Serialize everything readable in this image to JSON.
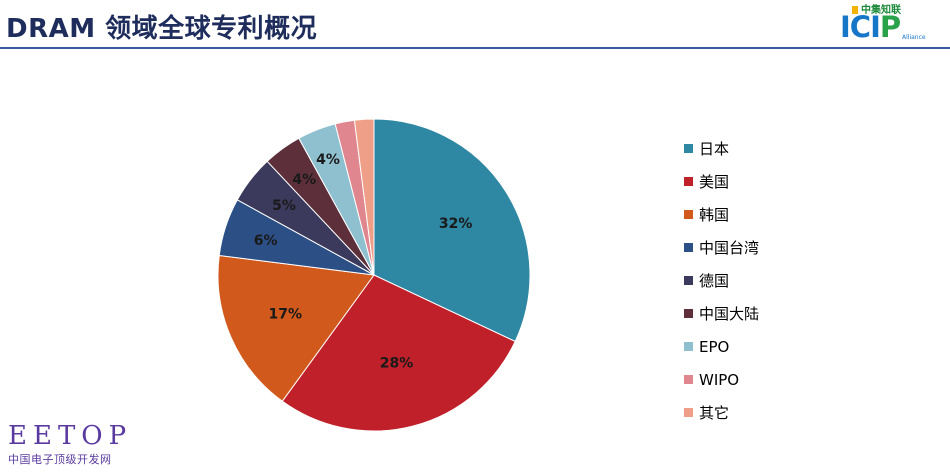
{
  "title": "DRAM 领域全球专利概况",
  "logo": {
    "top_text": "中集知联",
    "main_text_a": "ICI",
    "main_text_b": "P",
    "sub_text": "Alliance"
  },
  "watermark": {
    "big": "EETOP",
    "small": "中国电子顶级开发网"
  },
  "chart_data": {
    "type": "pie",
    "title": "",
    "start": "12 o'clock, clockwise",
    "categories": [
      "日本",
      "美国",
      "韩国",
      "中国台湾",
      "德国",
      "中国大陆",
      "EPO",
      "WIPO",
      "其它"
    ],
    "values": [
      32,
      28,
      17,
      6,
      5,
      4,
      4,
      2,
      2
    ],
    "data_labels": [
      "32%",
      "28%",
      "17%",
      "6%",
      "5%",
      "4%",
      "4%",
      "",
      ""
    ],
    "colors": [
      "#2e87a3",
      "#c0202a",
      "#d2591c",
      "#2c4f86",
      "#3c3a5c",
      "#5c2f3b",
      "#8fc0d0",
      "#e0868e",
      "#ef9e88"
    ],
    "legend_position": "right"
  }
}
